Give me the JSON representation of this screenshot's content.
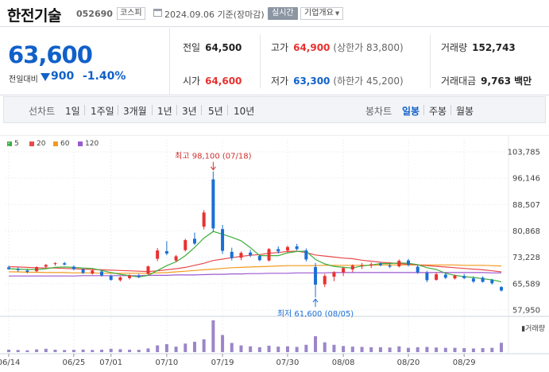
{
  "header": {
    "name": "한전기술",
    "code": "052690",
    "market": "코스피",
    "date": "2024.09.06 기준(장마감)",
    "realtime": "실시간",
    "company_info": "기업개요"
  },
  "summary": {
    "price": "63,600",
    "diff_label": "전일대비",
    "diff": "900",
    "diff_pct": "-1.40%",
    "prev_label": "전일",
    "prev": "64,500",
    "high_label": "고가",
    "high": "64,900",
    "upper_limit": "(상한가 83,800)",
    "volume_label": "거래량",
    "volume": "152,743",
    "open_label": "시가",
    "open": "64,600",
    "low_label": "저가",
    "low": "63,300",
    "lower_limit": "(하한가 45,200)",
    "amount_label": "거래대금",
    "amount": "9,763",
    "amount_unit": "백만"
  },
  "tabs": {
    "line_label": "선차트",
    "line": [
      "1일",
      "1주일",
      "3개월",
      "1년",
      "3년",
      "5년",
      "10년"
    ],
    "candle_label": "봉차트",
    "candle": [
      "일봉",
      "주봉",
      "월봉"
    ],
    "selected_candle": "일봉"
  },
  "colors": {
    "up": "#e8312f",
    "down": "#1a6fd6",
    "ma5": "#3cae3c",
    "ma20": "#e84a4a",
    "ma60": "#f39a1d",
    "ma120": "#9b59d0"
  },
  "chart_data": {
    "type": "candlestick",
    "legend": [
      "5",
      "20",
      "60",
      "120"
    ],
    "y_ticks": [
      103785,
      96146,
      88507,
      80868,
      73228,
      65589,
      57950
    ],
    "ylim": [
      57950,
      103785
    ],
    "x_labels": [
      "06/14",
      "06/25",
      "07/01",
      "07/10",
      "07/19",
      "07/30",
      "08/08",
      "08/20",
      "08/29"
    ],
    "x_label_index": [
      0,
      7,
      11,
      17,
      23,
      30,
      36,
      43,
      49
    ],
    "high_annotation": "최고 98,100 (07/18)",
    "low_annotation": "최저 61,600 (08/05)",
    "volume_label": "거래량",
    "candles": [
      {
        "o": 70300,
        "h": 70800,
        "l": 69600,
        "c": 69800
      },
      {
        "o": 69800,
        "h": 70400,
        "l": 69000,
        "c": 69500
      },
      {
        "o": 69400,
        "h": 69900,
        "l": 68600,
        "c": 69000
      },
      {
        "o": 69200,
        "h": 70600,
        "l": 68900,
        "c": 70400
      },
      {
        "o": 70500,
        "h": 71300,
        "l": 70100,
        "c": 71000
      },
      {
        "o": 71300,
        "h": 71800,
        "l": 70800,
        "c": 71500
      },
      {
        "o": 71500,
        "h": 71900,
        "l": 70900,
        "c": 71100
      },
      {
        "o": 70500,
        "h": 70900,
        "l": 69500,
        "c": 69800
      },
      {
        "o": 69700,
        "h": 70100,
        "l": 68400,
        "c": 68700
      },
      {
        "o": 68500,
        "h": 69800,
        "l": 68200,
        "c": 69400
      },
      {
        "o": 69100,
        "h": 69600,
        "l": 67600,
        "c": 68000
      },
      {
        "o": 67800,
        "h": 68200,
        "l": 66400,
        "c": 66700
      },
      {
        "o": 66600,
        "h": 67700,
        "l": 66200,
        "c": 67400
      },
      {
        "o": 67200,
        "h": 68300,
        "l": 66800,
        "c": 67900
      },
      {
        "o": 67800,
        "h": 68400,
        "l": 67200,
        "c": 67500
      },
      {
        "o": 68400,
        "h": 70800,
        "l": 68100,
        "c": 70600
      },
      {
        "o": 72800,
        "h": 75900,
        "l": 72100,
        "c": 75200
      },
      {
        "o": 75000,
        "h": 77900,
        "l": 73800,
        "c": 74300
      },
      {
        "o": 72300,
        "h": 73900,
        "l": 71800,
        "c": 73500
      },
      {
        "o": 75300,
        "h": 78600,
        "l": 74900,
        "c": 78200
      },
      {
        "o": 78600,
        "h": 80400,
        "l": 76800,
        "c": 77200
      },
      {
        "o": 82100,
        "h": 86900,
        "l": 81300,
        "c": 86200
      },
      {
        "o": 95800,
        "h": 98100,
        "l": 80600,
        "c": 81600
      },
      {
        "o": 81400,
        "h": 82600,
        "l": 74200,
        "c": 75100
      },
      {
        "o": 74800,
        "h": 76000,
        "l": 72300,
        "c": 73000
      },
      {
        "o": 73100,
        "h": 74900,
        "l": 72400,
        "c": 74500
      },
      {
        "o": 74600,
        "h": 75400,
        "l": 73300,
        "c": 73800
      },
      {
        "o": 73600,
        "h": 74000,
        "l": 72100,
        "c": 72400
      },
      {
        "o": 72300,
        "h": 75900,
        "l": 72000,
        "c": 75600
      },
      {
        "o": 75600,
        "h": 76400,
        "l": 74300,
        "c": 74900
      },
      {
        "o": 75200,
        "h": 76600,
        "l": 74500,
        "c": 76200
      },
      {
        "o": 76400,
        "h": 77100,
        "l": 75200,
        "c": 75600
      },
      {
        "o": 75200,
        "h": 75800,
        "l": 72000,
        "c": 72600
      },
      {
        "o": 70400,
        "h": 71600,
        "l": 61600,
        "c": 65300
      },
      {
        "o": 65400,
        "h": 68400,
        "l": 64600,
        "c": 67800
      },
      {
        "o": 67600,
        "h": 69200,
        "l": 66300,
        "c": 68900
      },
      {
        "o": 68800,
        "h": 70500,
        "l": 67800,
        "c": 70100
      },
      {
        "o": 69700,
        "h": 71200,
        "l": 68900,
        "c": 70800
      },
      {
        "o": 70800,
        "h": 71600,
        "l": 69800,
        "c": 70900
      },
      {
        "o": 70900,
        "h": 71700,
        "l": 70100,
        "c": 71200
      },
      {
        "o": 71400,
        "h": 71800,
        "l": 70600,
        "c": 70900
      },
      {
        "o": 70800,
        "h": 71500,
        "l": 70100,
        "c": 70500
      },
      {
        "o": 70600,
        "h": 72600,
        "l": 70300,
        "c": 72200
      },
      {
        "o": 72300,
        "h": 72800,
        "l": 70600,
        "c": 71000
      },
      {
        "o": 70500,
        "h": 71100,
        "l": 68400,
        "c": 68800
      },
      {
        "o": 68700,
        "h": 69300,
        "l": 66000,
        "c": 66600
      },
      {
        "o": 66700,
        "h": 68900,
        "l": 66400,
        "c": 68300
      },
      {
        "o": 68200,
        "h": 68700,
        "l": 66900,
        "c": 67300
      },
      {
        "o": 67100,
        "h": 68200,
        "l": 66800,
        "c": 67900
      },
      {
        "o": 67800,
        "h": 68400,
        "l": 66900,
        "c": 67200
      },
      {
        "o": 67100,
        "h": 67700,
        "l": 65800,
        "c": 66200
      },
      {
        "o": 67300,
        "h": 67700,
        "l": 65900,
        "c": 66100
      },
      {
        "o": 66600,
        "h": 67000,
        "l": 65300,
        "c": 65700
      },
      {
        "o": 64600,
        "h": 64900,
        "l": 63300,
        "c": 63600
      }
    ],
    "volumes": [
      40,
      35,
      30,
      45,
      55,
      40,
      35,
      38,
      42,
      36,
      40,
      55,
      48,
      40,
      38,
      60,
      110,
      130,
      90,
      140,
      170,
      210,
      520,
      280,
      150,
      110,
      95,
      80,
      105,
      90,
      95,
      85,
      120,
      260,
      160,
      120,
      100,
      90,
      85,
      80,
      80,
      75,
      95,
      70,
      80,
      85,
      75,
      70,
      70,
      65,
      60,
      65,
      70,
      152.7
    ],
    "ma5": [
      69900,
      69800,
      69700,
      69700,
      69900,
      70300,
      70400,
      70300,
      70100,
      70000,
      69400,
      68800,
      68300,
      67900,
      67500,
      68000,
      69400,
      70800,
      71900,
      73700,
      76100,
      78800,
      80700,
      79900,
      79000,
      78000,
      76000,
      73700,
      73700,
      73700,
      74500,
      74900,
      75000,
      72600,
      71300,
      70600,
      70300,
      70100,
      70700,
      71000,
      71400,
      71400,
      71600,
      71500,
      71100,
      70200,
      69700,
      68600,
      68000,
      67600,
      67400,
      67000,
      66700,
      66100
    ],
    "ma20": [
      70500,
      70400,
      70300,
      70200,
      70100,
      70100,
      70000,
      69900,
      69800,
      69700,
      69600,
      69500,
      69400,
      69300,
      69200,
      69100,
      69300,
      69600,
      69900,
      70300,
      70900,
      71500,
      72300,
      72700,
      73100,
      73500,
      73800,
      74000,
      74400,
      74600,
      74900,
      75000,
      74600,
      73900,
      73600,
      73300,
      73000,
      72800,
      72400,
      72100,
      71800,
      71600,
      71400,
      71200,
      71000,
      70800,
      70600,
      70400,
      70200,
      70000,
      69800,
      69600,
      69300,
      69000
    ],
    "ma60": [
      69000,
      69000,
      68900,
      68900,
      68800,
      68800,
      68800,
      68700,
      68700,
      68700,
      68600,
      68600,
      68600,
      68600,
      68600,
      68600,
      68700,
      68800,
      69000,
      69200,
      69400,
      69600,
      69800,
      70000,
      70200,
      70300,
      70400,
      70500,
      70600,
      70700,
      70800,
      70800,
      70800,
      70800,
      70900,
      70900,
      70900,
      70900,
      70900,
      70900,
      71000,
      71000,
      71000,
      71000,
      71000,
      71000,
      71000,
      71000,
      71000,
      70900,
      70900,
      70900,
      70800,
      70700
    ],
    "ma120": [
      67800,
      67800,
      67800,
      67800,
      67800,
      67800,
      67800,
      67800,
      67900,
      67900,
      67900,
      67900,
      67900,
      67900,
      67900,
      68000,
      68000,
      68000,
      68100,
      68100,
      68100,
      68200,
      68300,
      68300,
      68400,
      68400,
      68500,
      68500,
      68600,
      68600,
      68600,
      68700,
      68700,
      68700,
      68700,
      68800,
      68800,
      68800,
      68800,
      68800,
      68800,
      68800,
      68800,
      68800,
      68800,
      68800,
      68800,
      68800,
      68800,
      68800,
      68800,
      68800,
      68700,
      68700
    ]
  }
}
